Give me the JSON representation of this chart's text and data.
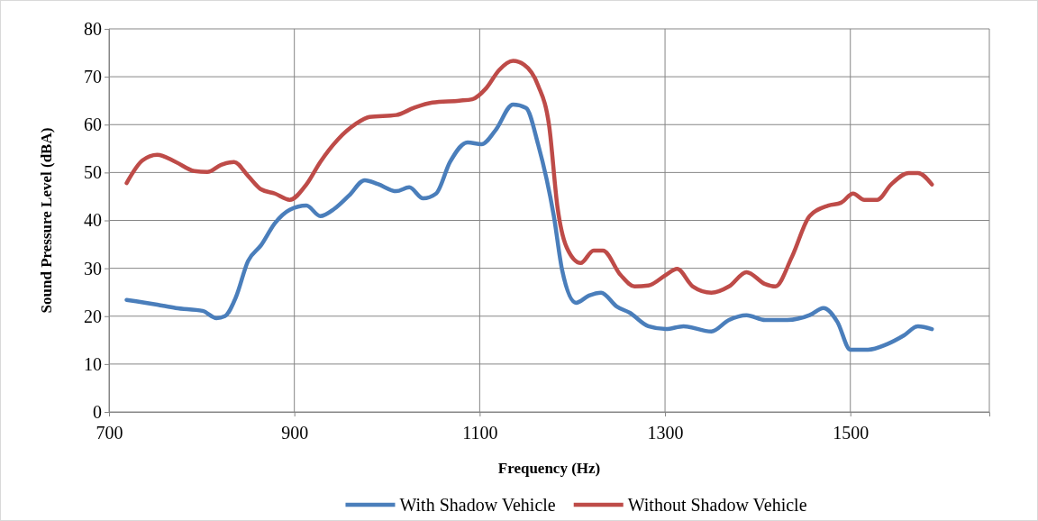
{
  "chart_data": {
    "type": "line",
    "xlabel": "Frequency (Hz)",
    "ylabel": "Sound Pressure Level (dBA)",
    "xlim": [
      700,
      1650
    ],
    "xticks": [
      700,
      900,
      1100,
      1300,
      1500
    ],
    "ylim": [
      0,
      80
    ],
    "yticks": [
      0,
      10,
      20,
      30,
      40,
      50,
      60,
      70,
      80
    ],
    "grid": true,
    "legend": "bottom",
    "marker": "none",
    "line_style": "solid",
    "series": [
      {
        "name": "With Shadow Vehicle",
        "color": "#4a7ebb",
        "x": [
          719,
          752,
          772,
          801,
          816,
          825,
          837,
          850,
          864,
          879,
          895,
          913,
          928,
          943,
          959,
          976,
          990,
          1010,
          1024,
          1039,
          1053,
          1068,
          1087,
          1102,
          1117,
          1136,
          1150,
          1163,
          1180,
          1189,
          1204,
          1218,
          1231,
          1248,
          1262,
          1282,
          1301,
          1320,
          1350,
          1369,
          1388,
          1408,
          1432,
          1456,
          1471,
          1486,
          1500,
          1519,
          1539,
          1558,
          1573,
          1588
        ],
        "values": [
          23.4,
          22.4,
          21.7,
          21.1,
          19.6,
          20,
          24,
          31.5,
          34.8,
          39.4,
          42.2,
          43.1,
          40.9,
          42.4,
          45.2,
          48.4,
          47.6,
          46.1,
          46.9,
          44.6,
          45.6,
          52.2,
          56.3,
          55.9,
          58.8,
          64.2,
          63.5,
          55.9,
          40.9,
          29.6,
          22.8,
          24.3,
          24.9,
          22,
          20.7,
          17.9,
          17.3,
          17.9,
          16.8,
          19.2,
          20.2,
          19.2,
          19.2,
          20.2,
          21.7,
          18.8,
          13,
          13,
          14.1,
          16,
          17.9,
          17.3
        ]
      },
      {
        "name": "Without Shadow Vehicle",
        "color": "#be4b48",
        "x": [
          719,
          736,
          752,
          772,
          792,
          806,
          821,
          835,
          850,
          864,
          879,
          895,
          913,
          928,
          947,
          966,
          981,
          1010,
          1029,
          1049,
          1078,
          1092,
          1107,
          1121,
          1136,
          1148,
          1163,
          1175,
          1184,
          1194,
          1209,
          1223,
          1233,
          1252,
          1267,
          1282,
          1301,
          1313,
          1330,
          1350,
          1369,
          1388,
          1408,
          1419,
          1437,
          1456,
          1476,
          1490,
          1503,
          1515,
          1529,
          1544,
          1563,
          1573,
          1588
        ],
        "values": [
          47.8,
          52.5,
          53.7,
          52.2,
          50.3,
          50.1,
          51.6,
          52.2,
          49.3,
          46.5,
          45.6,
          44.3,
          47.5,
          52.2,
          56.9,
          60.1,
          61.6,
          62,
          63.5,
          64.6,
          65,
          65.3,
          67.6,
          71.4,
          73.3,
          72.5,
          68.2,
          59.7,
          42.7,
          34.3,
          31.1,
          33.7,
          33.7,
          28.6,
          26.2,
          26.4,
          28.6,
          29.9,
          26.2,
          24.9,
          26.2,
          29.2,
          26.7,
          26.2,
          32.4,
          40.9,
          43.1,
          43.7,
          45.6,
          44.3,
          44.3,
          47.5,
          49.9,
          49.9,
          47.5
        ]
      }
    ]
  }
}
